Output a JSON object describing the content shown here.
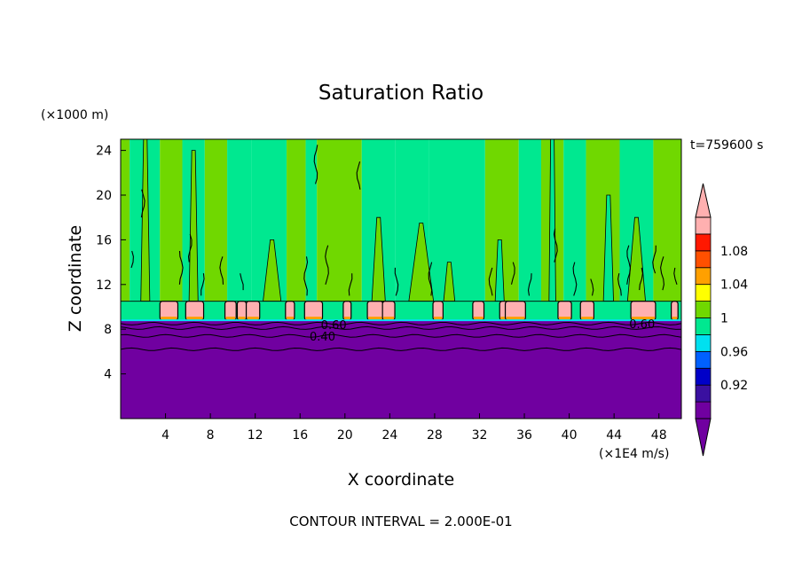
{
  "chart_data": {
    "type": "heatmap",
    "title": "Saturation Ratio",
    "xlabel": "X coordinate",
    "ylabel": "Z coordinate",
    "x_unit": "(×1E4 m/s)",
    "y_unit": "(×1000 m)",
    "time_label": "t=759600 s",
    "footer": "CONTOUR INTERVAL = 2.000E-01",
    "xlim": [
      0,
      50
    ],
    "ylim": [
      0,
      25
    ],
    "x_ticks": [
      4,
      8,
      12,
      16,
      20,
      24,
      28,
      32,
      36,
      40,
      44,
      48
    ],
    "y_ticks": [
      4,
      8,
      12,
      16,
      20,
      24
    ],
    "colorbar": {
      "ticks": [
        "1.08",
        "1.04",
        "1",
        "0.96",
        "0.92"
      ],
      "colors": [
        "#7000a0",
        "#3a10a0",
        "#0000c8",
        "#0060ff",
        "#00e0f0",
        "#00e890",
        "#70d800",
        "#ffff00",
        "#ffa000",
        "#ff5000",
        "#ff1800",
        "#ffb0b0"
      ]
    },
    "fields": {
      "dry_layer_top_z": 8.8,
      "cap_layer_top_z": 10.5
    },
    "contour_labels": [
      {
        "text": "0.60",
        "x": 19,
        "z": 8.4
      },
      {
        "text": "0.40",
        "x": 18,
        "z": 7.4
      },
      {
        "text": "0.60",
        "x": 46.5,
        "z": 8.5
      }
    ],
    "columns": [
      {
        "x0": 0,
        "x1": 0.8,
        "fill": "#70d800"
      },
      {
        "x0": 0.8,
        "x1": 3.5,
        "fill": "#00e890"
      },
      {
        "x0": 3.5,
        "x1": 5.5,
        "fill": "#70d800"
      },
      {
        "x0": 5.5,
        "x1": 7.5,
        "fill": "#00e890"
      },
      {
        "x0": 7.5,
        "x1": 9.5,
        "fill": "#70d800"
      },
      {
        "x0": 9.5,
        "x1": 11.7,
        "fill": "#00e890"
      },
      {
        "x0": 11.7,
        "x1": 12.5,
        "fill": "#00e890"
      },
      {
        "x0": 12.5,
        "x1": 14.8,
        "fill": "#00e890"
      },
      {
        "x0": 14.8,
        "x1": 16.5,
        "fill": "#70d800"
      },
      {
        "x0": 16.5,
        "x1": 17.5,
        "fill": "#00e890"
      },
      {
        "x0": 17.5,
        "x1": 21.5,
        "fill": "#70d800"
      },
      {
        "x0": 21.5,
        "x1": 24.5,
        "fill": "#00e890"
      },
      {
        "x0": 24.5,
        "x1": 27.5,
        "fill": "#00e890"
      },
      {
        "x0": 27.5,
        "x1": 32.5,
        "fill": "#00e890"
      },
      {
        "x0": 32.5,
        "x1": 35.5,
        "fill": "#70d800"
      },
      {
        "x0": 35.5,
        "x1": 37.5,
        "fill": "#00e890"
      },
      {
        "x0": 37.5,
        "x1": 39.5,
        "fill": "#70d800"
      },
      {
        "x0": 39.5,
        "x1": 41.5,
        "fill": "#00e890"
      },
      {
        "x0": 41.5,
        "x1": 44.5,
        "fill": "#70d800"
      },
      {
        "x0": 44.5,
        "x1": 47.5,
        "fill": "#00e890"
      },
      {
        "x0": 47.5,
        "x1": 50,
        "fill": "#70d800"
      }
    ],
    "plumes": [
      {
        "x": 2.2,
        "w": 0.8,
        "z_top": 25,
        "fill": "#70d800"
      },
      {
        "x": 6.5,
        "w": 0.8,
        "z_top": 24,
        "fill": "#70d800"
      },
      {
        "x": 13.5,
        "w": 1.6,
        "z_top": 16,
        "fill": "#70d800"
      },
      {
        "x": 23,
        "w": 1.2,
        "z_top": 18,
        "fill": "#70d800"
      },
      {
        "x": 26.8,
        "w": 2.2,
        "z_top": 17.5,
        "fill": "#70d800"
      },
      {
        "x": 29.3,
        "w": 1.0,
        "z_top": 14,
        "fill": "#70d800"
      },
      {
        "x": 33.8,
        "w": 0.8,
        "z_top": 16,
        "fill": "#00e890"
      },
      {
        "x": 38.5,
        "w": 0.6,
        "z_top": 25,
        "fill": "#00e890"
      },
      {
        "x": 43.5,
        "w": 0.9,
        "z_top": 20,
        "fill": "#00e890"
      },
      {
        "x": 46,
        "w": 1.6,
        "z_top": 18,
        "fill": "#70d800"
      }
    ],
    "cloud_tops": [
      {
        "x": 4.3,
        "w": 1.6
      },
      {
        "x": 6.6,
        "w": 1.6
      },
      {
        "x": 9.8,
        "w": 1.0
      },
      {
        "x": 10.8,
        "w": 0.8
      },
      {
        "x": 11.8,
        "w": 1.2
      },
      {
        "x": 15.1,
        "w": 0.8
      },
      {
        "x": 17.2,
        "w": 1.6
      },
      {
        "x": 20.2,
        "w": 0.7
      },
      {
        "x": 22.7,
        "w": 1.4
      },
      {
        "x": 23.9,
        "w": 1.1
      },
      {
        "x": 28.3,
        "w": 0.9
      },
      {
        "x": 31.9,
        "w": 1.0
      },
      {
        "x": 34.3,
        "w": 1.0
      },
      {
        "x": 35.2,
        "w": 1.8
      },
      {
        "x": 39.6,
        "w": 1.2
      },
      {
        "x": 41.6,
        "w": 1.2
      },
      {
        "x": 46.6,
        "w": 2.2
      },
      {
        "x": 49.4,
        "w": 0.6
      }
    ],
    "moist_wisps": [
      {
        "x": 1.0,
        "z0": 13.5,
        "z1": 15.0
      },
      {
        "x": 2.0,
        "z0": 18.0,
        "z1": 20.5
      },
      {
        "x": 5.4,
        "z0": 12.0,
        "z1": 15.0
      },
      {
        "x": 6.2,
        "z0": 14.0,
        "z1": 16.5
      },
      {
        "x": 7.3,
        "z0": 11.0,
        "z1": 13.0
      },
      {
        "x": 9.0,
        "z0": 12.0,
        "z1": 14.5
      },
      {
        "x": 10.8,
        "z0": 11.5,
        "z1": 13.0
      },
      {
        "x": 16.5,
        "z0": 11.0,
        "z1": 14.5
      },
      {
        "x": 17.4,
        "z0": 21.0,
        "z1": 24.5
      },
      {
        "x": 18.4,
        "z0": 12.0,
        "z1": 15.5
      },
      {
        "x": 20.5,
        "z0": 11.0,
        "z1": 13.0
      },
      {
        "x": 21.2,
        "z0": 20.5,
        "z1": 23.0
      },
      {
        "x": 24.6,
        "z0": 11.0,
        "z1": 13.5
      },
      {
        "x": 27.6,
        "z0": 11.0,
        "z1": 14.0
      },
      {
        "x": 33.0,
        "z0": 11.0,
        "z1": 13.5
      },
      {
        "x": 35.0,
        "z0": 12.0,
        "z1": 14.0
      },
      {
        "x": 36.5,
        "z0": 11.0,
        "z1": 13.0
      },
      {
        "x": 38.8,
        "z0": 14.0,
        "z1": 17.0
      },
      {
        "x": 40.5,
        "z0": 11.0,
        "z1": 14.0
      },
      {
        "x": 42.0,
        "z0": 11.0,
        "z1": 12.5
      },
      {
        "x": 44.5,
        "z0": 11.0,
        "z1": 13.0
      },
      {
        "x": 45.3,
        "z0": 12.0,
        "z1": 15.5
      },
      {
        "x": 46.4,
        "z0": 11.5,
        "z1": 13.5
      },
      {
        "x": 47.6,
        "z0": 13.0,
        "z1": 15.5
      },
      {
        "x": 48.3,
        "z0": 11.5,
        "z1": 14.5
      },
      {
        "x": 49.5,
        "z0": 12.0,
        "z1": 13.5
      }
    ],
    "low_contours_z": [
      6.2,
      7.4,
      8.1,
      8.5
    ]
  }
}
